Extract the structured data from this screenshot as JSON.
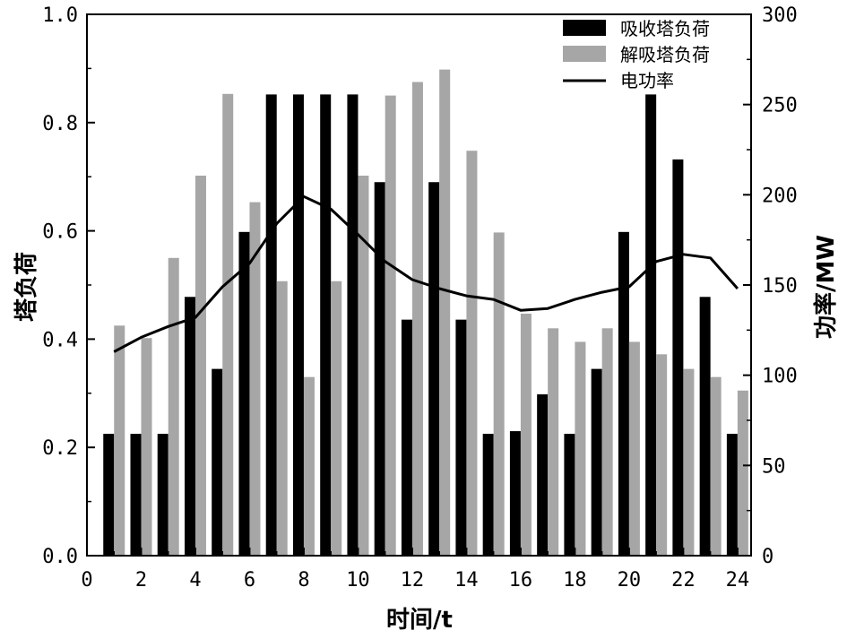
{
  "chart_data": {
    "type": "bar",
    "x": [
      1,
      2,
      3,
      4,
      5,
      6,
      7,
      8,
      9,
      10,
      11,
      12,
      13,
      14,
      15,
      16,
      17,
      18,
      19,
      20,
      21,
      22,
      23,
      24
    ],
    "xlim": [
      0,
      24.5
    ],
    "xticks": [
      0,
      2,
      4,
      6,
      8,
      10,
      12,
      14,
      16,
      18,
      20,
      22,
      24
    ],
    "xlabel": "时间/t",
    "ylabel": "塔负荷",
    "ylim": [
      0,
      1.0
    ],
    "yticks": [
      "0.0",
      "0.2",
      "0.4",
      "0.6",
      "0.8",
      "1.0"
    ],
    "y2label": "功率/MW",
    "y2lim": [
      0,
      300
    ],
    "y2ticks": [
      "0",
      "50",
      "100",
      "150",
      "200",
      "250",
      "300"
    ],
    "legend_position": "top-right",
    "series": [
      {
        "name": "吸收塔负荷",
        "kind": "bar",
        "axis": "left",
        "color": "#000000",
        "values": [
          0.225,
          0.225,
          0.225,
          0.478,
          0.345,
          0.598,
          0.852,
          0.852,
          0.852,
          0.852,
          0.69,
          0.436,
          0.69,
          0.436,
          0.225,
          0.23,
          0.298,
          0.225,
          0.345,
          0.598,
          0.852,
          0.732,
          0.478,
          0.225
        ]
      },
      {
        "name": "解吸塔负荷",
        "kind": "bar",
        "axis": "left",
        "color": "#a6a6a6",
        "values": [
          0.425,
          0.402,
          0.55,
          0.702,
          0.853,
          0.653,
          0.507,
          0.33,
          0.507,
          0.702,
          0.85,
          0.875,
          0.898,
          0.748,
          0.597,
          0.447,
          0.42,
          0.395,
          0.42,
          0.395,
          0.372,
          0.345,
          0.33,
          0.305
        ]
      },
      {
        "name": "电功率",
        "kind": "line",
        "axis": "right",
        "color": "#000000",
        "values": [
          113,
          121,
          127,
          132,
          149,
          162,
          184,
          199,
          192,
          178,
          163,
          153,
          148,
          144,
          142,
          136,
          137,
          142,
          146,
          149,
          163,
          167,
          165,
          148
        ]
      }
    ]
  }
}
